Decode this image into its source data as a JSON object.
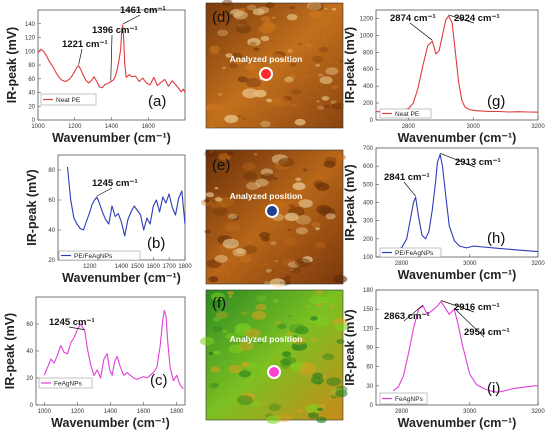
{
  "chart_data": [
    {
      "id": "a",
      "type": "line",
      "panel_label": "(a)",
      "color": "#e03c3c",
      "xlabel": "Wavenumber (cm⁻¹)",
      "ylabel": "IR-peak (mV)",
      "xlim": [
        1000,
        1800
      ],
      "ylim": [
        0,
        160
      ],
      "xticks": [
        1000,
        1200,
        1400,
        1600
      ],
      "yticks": [
        0,
        20,
        40,
        60,
        80,
        100,
        120,
        140
      ],
      "series": [
        {
          "name": "Neat PE",
          "x": [
            1000,
            1015,
            1030,
            1045,
            1060,
            1080,
            1100,
            1115,
            1130,
            1150,
            1170,
            1185,
            1200,
            1210,
            1221,
            1232,
            1245,
            1260,
            1275,
            1290,
            1305,
            1320,
            1335,
            1350,
            1365,
            1380,
            1396,
            1410,
            1420,
            1430,
            1440,
            1450,
            1456,
            1461,
            1466,
            1472,
            1480,
            1495,
            1510,
            1530,
            1550,
            1570,
            1590,
            1610,
            1630,
            1650,
            1670,
            1690,
            1710,
            1730,
            1750,
            1765,
            1780,
            1790,
            1800
          ],
          "y": [
            98,
            103,
            100,
            94,
            86,
            78,
            68,
            62,
            58,
            56,
            59,
            64,
            71,
            76,
            79,
            74,
            66,
            58,
            54,
            57,
            63,
            56,
            48,
            47,
            52,
            53,
            56,
            58,
            63,
            72,
            86,
            103,
            132,
            138,
            120,
            82,
            62,
            66,
            63,
            64,
            56,
            61,
            54,
            51,
            62,
            50,
            55,
            59,
            49,
            57,
            51,
            46,
            41,
            45,
            40
          ]
        }
      ],
      "annotations": [
        "1461 cm⁻¹",
        "1396 cm⁻¹",
        "1221 cm⁻¹"
      ]
    },
    {
      "id": "b",
      "type": "line",
      "panel_label": "(b)",
      "color": "#2c3cb8",
      "xlabel": "Wavenumber (cm⁻¹)",
      "ylabel": "IR-peak (mV)",
      "xlim": [
        1000,
        1800
      ],
      "ylim": [
        20,
        90
      ],
      "xticks": [
        1200,
        1400,
        1500,
        1600,
        1700,
        1800
      ],
      "yticks": [
        20,
        40,
        60,
        80
      ],
      "series": [
        {
          "name": "PE/FeAgNPs",
          "x": [
            1060,
            1080,
            1100,
            1120,
            1140,
            1160,
            1180,
            1200,
            1215,
            1230,
            1245,
            1260,
            1280,
            1300,
            1320,
            1340,
            1360,
            1380,
            1400,
            1420,
            1440,
            1460,
            1480,
            1500,
            1520,
            1540,
            1560,
            1580,
            1600,
            1620,
            1640,
            1660,
            1680,
            1700,
            1720,
            1740,
            1760,
            1780,
            1800
          ],
          "y": [
            82,
            60,
            48,
            44,
            41,
            40,
            46,
            52,
            57,
            60,
            62,
            58,
            52,
            47,
            44,
            56,
            49,
            51,
            45,
            36,
            47,
            52,
            56,
            53,
            50,
            40,
            48,
            44,
            56,
            60,
            52,
            62,
            58,
            64,
            55,
            50,
            61,
            66,
            44
          ]
        }
      ],
      "annotations": [
        "1245 cm⁻¹"
      ]
    },
    {
      "id": "c",
      "type": "line",
      "panel_label": "(c)",
      "color": "#e040d8",
      "xlabel": "Wavenumber (cm⁻¹)",
      "ylabel": "IR-peak (mV)",
      "xlim": [
        950,
        1850
      ],
      "ylim": [
        0,
        80
      ],
      "xticks": [
        1000,
        1200,
        1400,
        1600,
        1800
      ],
      "yticks": [
        0,
        20,
        40,
        60
      ],
      "series": [
        {
          "name": "FeAgNPs",
          "x": [
            1000,
            1020,
            1040,
            1060,
            1080,
            1100,
            1120,
            1140,
            1160,
            1180,
            1200,
            1220,
            1245,
            1260,
            1280,
            1300,
            1320,
            1340,
            1360,
            1380,
            1395,
            1410,
            1425,
            1440,
            1460,
            1480,
            1500,
            1520,
            1540,
            1560,
            1580,
            1600,
            1620,
            1640,
            1660,
            1680,
            1700,
            1715,
            1725,
            1735,
            1745,
            1760,
            1780,
            1800,
            1820,
            1840
          ],
          "y": [
            22,
            28,
            34,
            31,
            37,
            44,
            39,
            38,
            46,
            50,
            56,
            60,
            55,
            42,
            30,
            22,
            26,
            20,
            34,
            38,
            26,
            22,
            32,
            36,
            28,
            22,
            24,
            22,
            20,
            19,
            20,
            21,
            20,
            22,
            24,
            28,
            44,
            62,
            70,
            66,
            48,
            28,
            18,
            22,
            15,
            12
          ]
        }
      ],
      "annotations": [
        "1245 cm⁻¹"
      ]
    },
    {
      "id": "g",
      "type": "line",
      "panel_label": "(g)",
      "color": "#e03c3c",
      "xlabel": "Wavenumber (cm⁻¹)",
      "ylabel": "IR-peak (mV)",
      "xlim": [
        2700,
        3200
      ],
      "ylim": [
        0,
        1300
      ],
      "xticks": [
        2800,
        3000,
        3200
      ],
      "yticks": [
        0,
        200,
        400,
        600,
        800,
        1000,
        1200
      ],
      "series": [
        {
          "name": "Neat PE",
          "x": [
            2700,
            2720,
            2740,
            2760,
            2780,
            2800,
            2815,
            2830,
            2845,
            2860,
            2874,
            2885,
            2895,
            2905,
            2915,
            2924,
            2935,
            2945,
            2955,
            2965,
            2975,
            2990,
            3010,
            3030,
            3050,
            3080,
            3110,
            3140,
            3170,
            3200
          ],
          "y": [
            100,
            95,
            100,
            105,
            115,
            135,
            200,
            380,
            650,
            880,
            930,
            780,
            820,
            1000,
            1180,
            1230,
            1150,
            800,
            450,
            230,
            150,
            120,
            110,
            105,
            100,
            100,
            95,
            98,
            95,
            92
          ]
        }
      ],
      "annotations": [
        "2874 cm⁻¹",
        "2924 cm⁻¹"
      ]
    },
    {
      "id": "h",
      "type": "line",
      "panel_label": "(h)",
      "color": "#2c3cb8",
      "xlabel": "Wavenumber (cm⁻¹)",
      "ylabel": "IR-peak (mV)",
      "xlim": [
        2725,
        3200
      ],
      "ylim": [
        100,
        700
      ],
      "xticks": [
        2800,
        3000,
        3200
      ],
      "yticks": [
        100,
        200,
        300,
        400,
        500,
        600,
        700
      ],
      "series": [
        {
          "name": "PE/FeAgNPs",
          "x": [
            2760,
            2780,
            2800,
            2815,
            2825,
            2835,
            2841,
            2850,
            2860,
            2870,
            2880,
            2890,
            2900,
            2905,
            2913,
            2920,
            2930,
            2940,
            2955,
            2970,
            2990,
            3010,
            3040,
            3070,
            3100,
            3130,
            3160,
            3200
          ],
          "y": [
            135,
            140,
            150,
            200,
            300,
            400,
            430,
            320,
            220,
            200,
            240,
            360,
            520,
            620,
            665,
            600,
            430,
            270,
            190,
            160,
            150,
            160,
            155,
            150,
            145,
            140,
            135,
            130
          ]
        }
      ],
      "annotations": [
        "2841 cm⁻¹",
        "2913 cm⁻¹"
      ]
    },
    {
      "id": "i",
      "type": "line",
      "panel_label": "(i)",
      "color": "#e040d8",
      "xlabel": "Wavenumber (cm⁻¹)",
      "ylabel": "IR-peak (mV)",
      "xlim": [
        2725,
        3200
      ],
      "ylim": [
        0,
        180
      ],
      "xticks": [
        2800,
        3000,
        3200
      ],
      "yticks": [
        0,
        30,
        60,
        90,
        120,
        150,
        180
      ],
      "series": [
        {
          "name": "FeAgNPs",
          "x": [
            2775,
            2790,
            2805,
            2820,
            2835,
            2850,
            2863,
            2875,
            2890,
            2905,
            2916,
            2930,
            2940,
            2954,
            2965,
            2980,
            3000,
            3020,
            3040,
            3060,
            3080,
            3100,
            3130,
            3160,
            3190,
            3200
          ],
          "y": [
            22,
            28,
            45,
            80,
            120,
            150,
            155,
            142,
            148,
            155,
            162,
            150,
            142,
            150,
            128,
            90,
            48,
            32,
            26,
            22,
            20,
            22,
            26,
            28,
            30,
            30
          ]
        }
      ],
      "annotations": [
        "2863 cm⁻¹",
        "2916 cm⁻¹",
        "2954 cm⁻¹"
      ]
    }
  ],
  "images": [
    {
      "id": "d",
      "panel_label": "(d)",
      "caption": "Analyzed position",
      "marker_color": "#ff2a2a",
      "colors": [
        "#6b2e08",
        "#d07a1e",
        "#f4d9a0"
      ]
    },
    {
      "id": "e",
      "panel_label": "(e)",
      "caption": "Analyzed position",
      "marker_color": "#1f3f8f",
      "colors": [
        "#5a2606",
        "#c8711a",
        "#f5e1b0"
      ]
    },
    {
      "id": "f",
      "panel_label": "(f)",
      "caption": "Analyzed position",
      "marker_color": "#ff40d0",
      "colors": [
        "#1e7a1e",
        "#7ed321",
        "#e0a020"
      ]
    }
  ]
}
